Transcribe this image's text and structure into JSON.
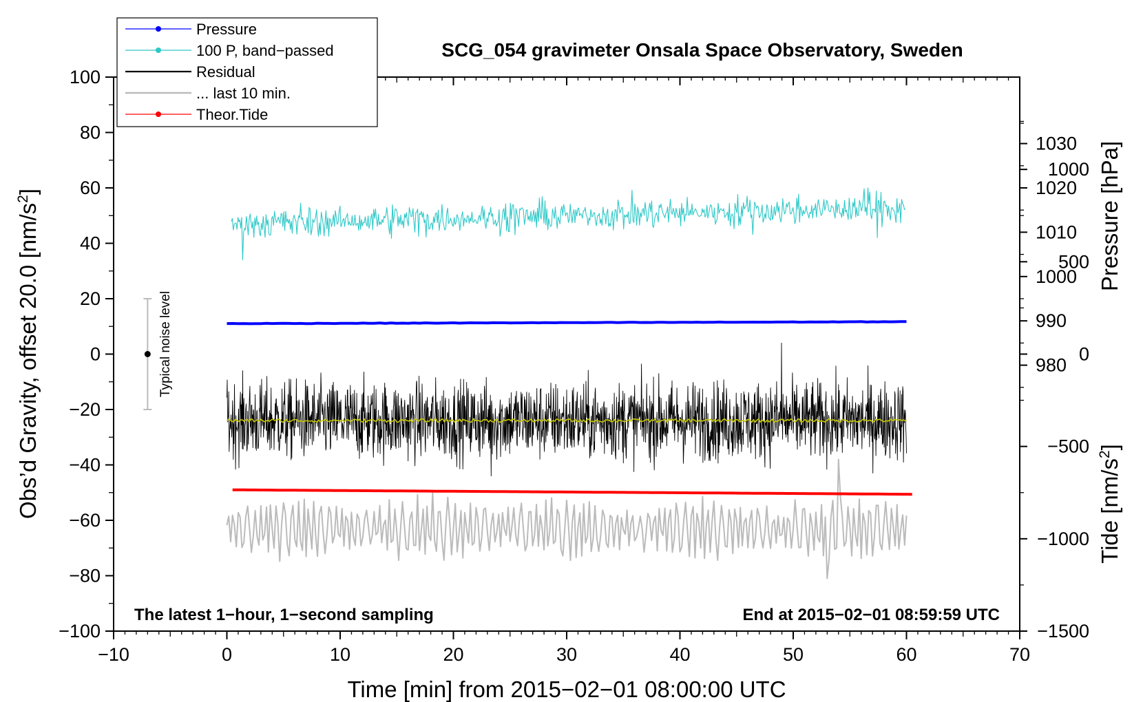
{
  "chart_data": {
    "type": "line",
    "title": "SCG_054 gravimeter Onsala Space Observatory, Sweden",
    "xlabel": "Time [min] from 2015−02−01 08:00:00 UTC",
    "ylabel": "Obs’d Gravity, offset 20.0 [nm/s²]",
    "ylabel_parts": [
      "Obs’d Gravity, offset 20.0 [nm/s",
      "2",
      "]"
    ],
    "y2label": "Pressure [hPa]",
    "y3label_parts": [
      "Tide [nm/s",
      "2",
      "]"
    ],
    "xlim": [
      -10,
      70
    ],
    "ylim": [
      -100,
      100
    ],
    "x_ticks": [
      "−10",
      "0",
      "10",
      "20",
      "30",
      "40",
      "50",
      "60",
      "70"
    ],
    "y_ticks": [
      "−100",
      "−80",
      "−60",
      "−40",
      "−20",
      "0",
      "20",
      "40",
      "60",
      "80",
      "100"
    ],
    "pressure_axis": {
      "ticks": [
        980,
        990,
        1000,
        1010,
        1020,
        1030
      ],
      "ylim": [
        920,
        1045
      ]
    },
    "tide_axis": {
      "ticks": [
        -1500,
        -1000,
        -500,
        0,
        500,
        1000
      ],
      "ylim": [
        -1500,
        1500
      ]
    },
    "annotations": {
      "left": "The latest 1−hour, 1−second sampling",
      "right": "End at 2015−02−01 08:59:59 UTC",
      "noise": "Typical noise level"
    },
    "noise_bar": {
      "x": -7,
      "center": 0,
      "range": [
        -20,
        20
      ]
    },
    "legend": [
      {
        "label": "Pressure",
        "color": "#0000ff",
        "marker": true
      },
      {
        "label": "100 P, band−passed",
        "color": "#2ec8c8",
        "marker": true
      },
      {
        "label": "Residual",
        "color": "#000000",
        "marker": false
      },
      {
        "label": "... last 10 min.",
        "color": "#bbbbbb",
        "marker": false
      },
      {
        "label": "Theor.Tide",
        "color": "#ff0000",
        "marker": true
      }
    ],
    "series": [
      {
        "name": "Pressure",
        "color": "#0000ff",
        "x_range": [
          0,
          60
        ],
        "start": 11.0,
        "end": 11.7,
        "noise": 0.15,
        "kind": "pressure"
      },
      {
        "name": "100 P, band−passed",
        "color": "#2ec8c8",
        "x_range": [
          0.4,
          59.9
        ],
        "start": 47,
        "end": 53,
        "amplitude": 4,
        "kind": "bandpass"
      },
      {
        "name": "Residual",
        "color": "#000000",
        "x_range": [
          0,
          60
        ],
        "mean": -24,
        "amplitude": 7,
        "min": -44,
        "max": 4,
        "kind": "residual"
      },
      {
        "name": "Residual smoothed",
        "color": "#c8c800",
        "x_range": [
          0,
          60
        ],
        "mean": -24,
        "amplitude": 0.6,
        "kind": "smooth"
      },
      {
        "name": "... last 10 min.",
        "color": "#bbbbbb",
        "x_range": [
          0,
          60
        ],
        "mean": -63,
        "amplitude": 8,
        "min": -81,
        "max": -38,
        "kind": "last10"
      },
      {
        "name": "Theor.Tide",
        "color": "#ff0000",
        "x_range": [
          0.5,
          60.5
        ],
        "start": -49,
        "end": -50.6,
        "kind": "tide"
      }
    ]
  }
}
